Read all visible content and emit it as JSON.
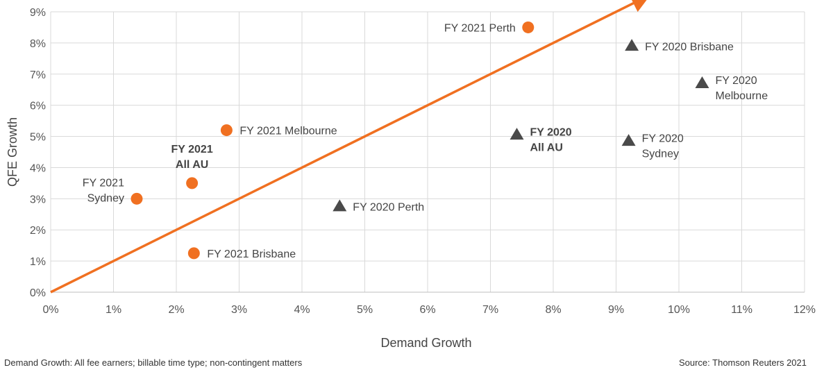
{
  "chart_data": {
    "type": "scatter",
    "xlabel": "Demand Growth",
    "ylabel": "QFE Growth",
    "xlim": [
      0,
      12
    ],
    "ylim": [
      0,
      9
    ],
    "x_ticks": [
      "0%",
      "1%",
      "2%",
      "3%",
      "4%",
      "5%",
      "6%",
      "7%",
      "8%",
      "9%",
      "10%",
      "11%",
      "12%"
    ],
    "y_ticks": [
      "0%",
      "1%",
      "2%",
      "3%",
      "4%",
      "5%",
      "6%",
      "7%",
      "8%",
      "9%"
    ],
    "grid": true,
    "reference_line": {
      "from": [
        0,
        0
      ],
      "to": [
        9.5,
        9.5
      ],
      "color": "#f07021"
    },
    "series": [
      {
        "marker": "circle",
        "color": "#f07021",
        "points": [
          {
            "x": 7.6,
            "y": 8.5,
            "label": [
              "FY 2021 Perth"
            ],
            "anchor": "left",
            "bold": false
          },
          {
            "x": 2.8,
            "y": 5.2,
            "label": [
              "FY 2021 Melbourne"
            ],
            "anchor": "right",
            "bold": false
          },
          {
            "x": 2.25,
            "y": 3.5,
            "label": [
              "FY 2021",
              "All AU"
            ],
            "anchor": "above",
            "bold": true
          },
          {
            "x": 1.37,
            "y": 3.0,
            "label": [
              "FY 2021",
              "Sydney"
            ],
            "anchor": "left",
            "bold": false
          },
          {
            "x": 2.28,
            "y": 1.25,
            "label": [
              "FY 2021 Brisbane"
            ],
            "anchor": "right",
            "bold": false
          }
        ]
      },
      {
        "marker": "triangle",
        "color": "#4a4a4a",
        "points": [
          {
            "x": 9.25,
            "y": 7.9,
            "label": [
              "FY 2020 Brisbane"
            ],
            "anchor": "right",
            "bold": false
          },
          {
            "x": 10.37,
            "y": 6.7,
            "label": [
              "FY 2020",
              "Melbourne"
            ],
            "anchor": "right",
            "bold": false
          },
          {
            "x": 7.42,
            "y": 5.05,
            "label": [
              "FY 2020",
              "All AU"
            ],
            "anchor": "right",
            "bold": true
          },
          {
            "x": 9.2,
            "y": 4.85,
            "label": [
              "FY 2020",
              "Sydney"
            ],
            "anchor": "right",
            "bold": false
          },
          {
            "x": 4.6,
            "y": 2.75,
            "label": [
              "FY 2020 Perth"
            ],
            "anchor": "right",
            "bold": false
          }
        ]
      }
    ]
  },
  "footnote_left": "Demand Growth: All fee earners; billable time type; non-contingent matters",
  "footnote_right": "Source: Thomson Reuters 2021"
}
